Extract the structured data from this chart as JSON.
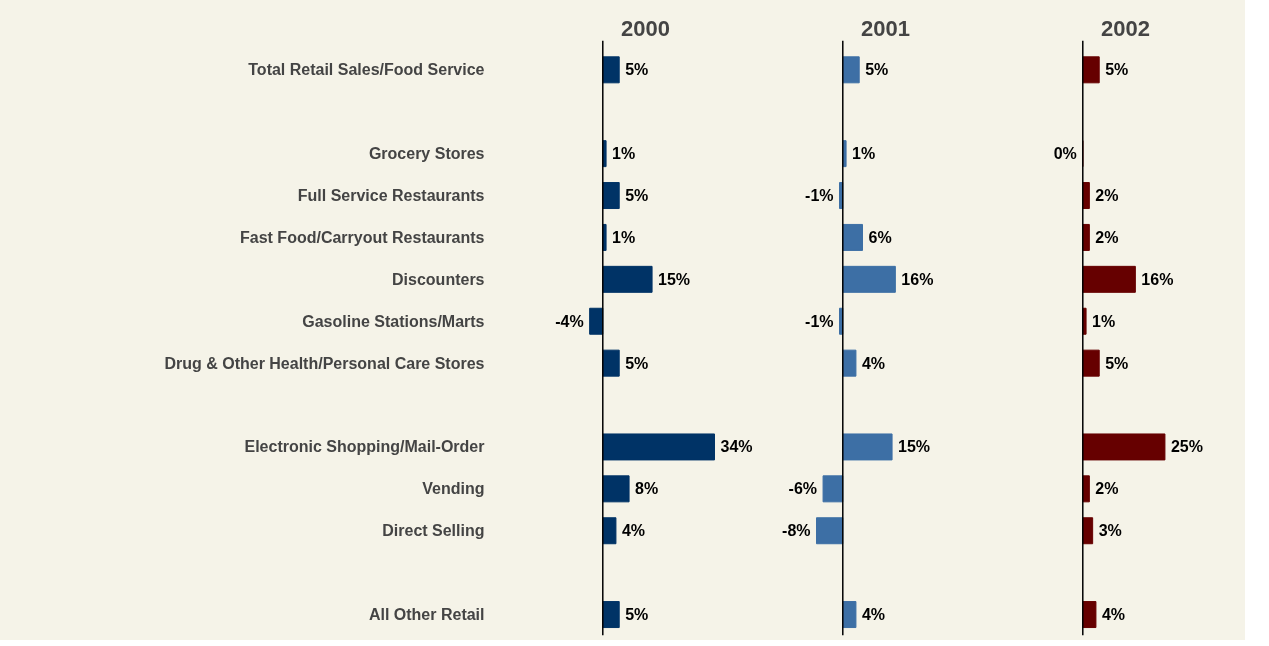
{
  "chart_data": [
    {
      "type": "bar",
      "orientation": "horizontal",
      "title": "2000",
      "tick_labels": "y",
      "categories": [
        "Total Retail Sales/Food Service",
        null,
        "Grocery Stores",
        "Full Service Restaurants",
        "Fast Food/Carryout Restaurants",
        "Discounters",
        "Gasoline Stations/Marts",
        "Drug & Other Health/Personal Care Stores",
        null,
        "Electronic Shopping/Mail-Order",
        "Vending",
        "Direct Selling",
        null,
        "All Other Retail"
      ],
      "values": [
        5,
        null,
        1,
        5,
        1,
        15,
        -4,
        5,
        null,
        34,
        8,
        4,
        null,
        5
      ],
      "value_labels": [
        "5%",
        null,
        "1%",
        "5%",
        "1%",
        "15%",
        "-4%",
        "5%",
        null,
        "34%",
        "8%",
        "4%",
        null,
        "5%"
      ],
      "color": "#003366"
    },
    {
      "type": "bar",
      "orientation": "horizontal",
      "title": "2001",
      "tick_labels": false,
      "values": [
        5,
        null,
        1,
        -1,
        6,
        16,
        -1,
        4,
        null,
        15,
        -6,
        -8,
        null,
        4
      ],
      "value_labels": [
        "5%",
        null,
        "1%",
        "-1%",
        "6%",
        "16%",
        "-1%",
        "4%",
        null,
        "15%",
        "-6%",
        "-8%",
        null,
        "4%"
      ],
      "color": "#3d6fa5"
    },
    {
      "type": "bar",
      "orientation": "horizontal",
      "title": "2002",
      "tick_labels": false,
      "values": [
        5,
        null,
        0,
        2,
        2,
        16,
        1,
        5,
        null,
        25,
        2,
        3,
        null,
        4
      ],
      "value_labels": [
        "5%",
        null,
        "0%",
        "2%",
        "2%",
        "16%",
        "1%",
        "5%",
        null,
        "25%",
        "2%",
        "3%",
        null,
        "4%"
      ],
      "color": "#660000"
    }
  ]
}
